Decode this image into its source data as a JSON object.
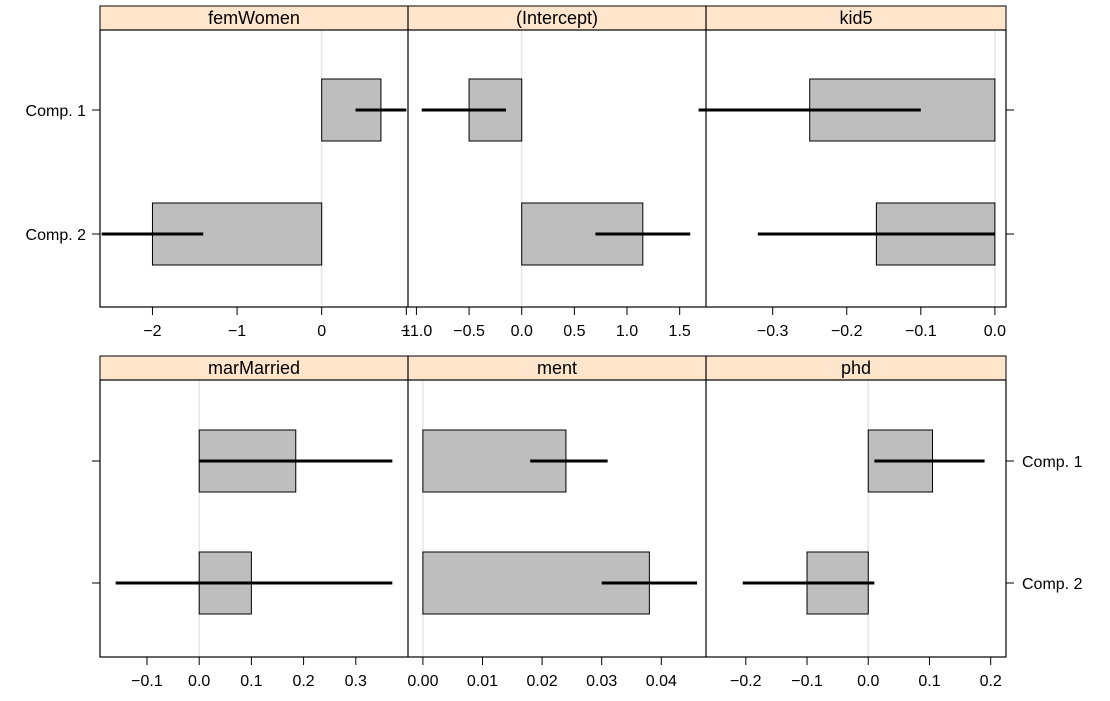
{
  "chart_data": {
    "type": "bar",
    "categories": [
      "Comp. 1",
      "Comp. 2"
    ],
    "colors": {
      "bar_fill": "#bebebe",
      "strip_fill": "#ffe5cc",
      "zero_line": "#e6e6e6",
      "whisker": "#000000"
    },
    "panels": [
      {
        "title": "femWomen",
        "xlim": [
          -2.62,
          1.02
        ],
        "ticks": [
          "-2",
          "-1",
          "0",
          "1"
        ],
        "tick_values": [
          -2,
          -1,
          0,
          1
        ],
        "values": [
          0.7,
          -2.0
        ],
        "ci": [
          [
            0.4,
            1.0
          ],
          [
            -2.6,
            -1.4
          ]
        ]
      },
      {
        "title": "(Intercept)",
        "xlim": [
          -1.08,
          1.75
        ],
        "ticks": [
          "-1.0",
          "-0.5",
          "0.0",
          "0.5",
          "1.0",
          "1.5"
        ],
        "tick_values": [
          -1.0,
          -0.5,
          0.0,
          0.5,
          1.0,
          1.5
        ],
        "values": [
          -0.5,
          1.15
        ],
        "ci": [
          [
            -0.95,
            -0.15
          ],
          [
            0.7,
            1.6
          ]
        ]
      },
      {
        "title": "kid5",
        "xlim": [
          -0.39,
          0.015
        ],
        "ticks": [
          "-0.3",
          "-0.2",
          "-0.1",
          "0.0"
        ],
        "tick_values": [
          -0.3,
          -0.2,
          -0.1,
          0.0
        ],
        "values": [
          -0.25,
          -0.16
        ],
        "ci": [
          [
            -0.4,
            -0.1
          ],
          [
            -0.32,
            0.0
          ]
        ]
      },
      {
        "title": "marMarried",
        "xlim": [
          -0.19,
          0.4
        ],
        "ticks": [
          "-0.1",
          "0.0",
          "0.1",
          "0.2",
          "0.3"
        ],
        "tick_values": [
          -0.1,
          0.0,
          0.1,
          0.2,
          0.3
        ],
        "values": [
          0.185,
          0.1
        ],
        "ci": [
          [
            0.0,
            0.37
          ],
          [
            -0.16,
            0.37
          ]
        ]
      },
      {
        "title": "ment",
        "xlim": [
          -0.0025,
          0.0475
        ],
        "ticks": [
          "0.00",
          "0.01",
          "0.02",
          "0.03",
          "0.04"
        ],
        "tick_values": [
          0.0,
          0.01,
          0.02,
          0.03,
          0.04
        ],
        "values": [
          0.024,
          0.038
        ],
        "ci": [
          [
            0.018,
            0.031
          ],
          [
            0.03,
            0.046
          ]
        ]
      },
      {
        "title": "phd",
        "xlim": [
          -0.265,
          0.225
        ],
        "ticks": [
          "-0.2",
          "-0.1",
          "0.0",
          "0.1",
          "0.2"
        ],
        "tick_values": [
          -0.2,
          -0.1,
          0.0,
          0.1,
          0.2
        ],
        "values": [
          0.105,
          -0.1
        ],
        "ci": [
          [
            0.01,
            0.19
          ],
          [
            -0.205,
            0.01
          ]
        ]
      }
    ]
  }
}
